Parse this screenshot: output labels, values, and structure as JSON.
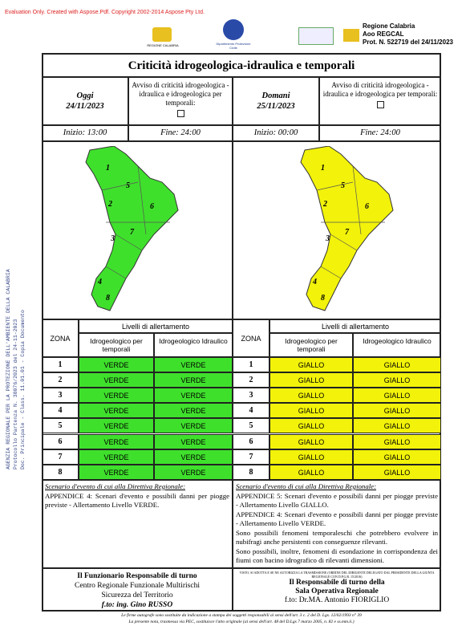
{
  "watermark": "Evaluation Only. Created with Aspose.Pdf. Copyright 2002-2014 Aspose Pty Ltd.",
  "header": {
    "logo_left": "REGIONE CALABRIA",
    "logo_center": "Dipartimento Protezione Civile",
    "right": [
      "Regione Calabria",
      "Aoo REGCAL",
      "Prot. N. 522719 del 24/11/2023"
    ]
  },
  "side_stamp": [
    "AGENZIA REGIONALE PER LA PROTEZIONE DELL'AMBIENTE DELLA CALABRIA",
    "Protocollo Partenza N. 38076/2023 del 24-11-2023",
    "Doc. Principale - Class. 11.01.01 - Copia Documento"
  ],
  "title": "Criticità idrogeologica-idraulica e temporali",
  "panels": [
    {
      "day": "Oggi",
      "date": "24/11/2023",
      "avviso": "Avviso di criticità idrogeologica - idraulica e idrogeologica per temporali:",
      "start": "Inizio: 13:00",
      "end": "Fine: 24:00",
      "color": "#3fe02c",
      "map_labels": [
        "1",
        "5",
        "2",
        "6",
        "3",
        "7",
        "4",
        "8"
      ],
      "zona_header": "ZONA",
      "levels_header": "Livelli di allertamento",
      "col1": "Idrogeologico per temporali",
      "col2": "Idrogeologico Idraulico",
      "rows": [
        [
          "1",
          "VERDE",
          "VERDE"
        ],
        [
          "2",
          "VERDE",
          "VERDE"
        ],
        [
          "3",
          "VERDE",
          "VERDE"
        ],
        [
          "4",
          "VERDE",
          "VERDE"
        ],
        [
          "5",
          "VERDE",
          "VERDE"
        ],
        [
          "6",
          "VERDE",
          "VERDE"
        ],
        [
          "7",
          "VERDE",
          "VERDE"
        ],
        [
          "8",
          "VERDE",
          "VERDE"
        ]
      ],
      "scenario_title": "Scenario d'evento di cui alla Direttiva Regionale:",
      "scenario": [
        "APPENDICE 4: Scenari d'evento e possibili danni per piogge previste - Allertamento Livello VERDE."
      ]
    },
    {
      "day": "Domani",
      "date": "25/11/2023",
      "avviso": "Avviso di criticità idrogeologica - idraulica e idrogeologica per temporali:",
      "start": "Inizio: 00:00",
      "end": "Fine: 24:00",
      "color": "#f2f20a",
      "map_labels": [
        "1",
        "5",
        "2",
        "6",
        "3",
        "7",
        "4",
        "8"
      ],
      "zona_header": "ZONA",
      "levels_header": "Livelli di allertamento",
      "col1": "Idrogeologico per temporali",
      "col2": "Idrogeologico Idraulico",
      "rows": [
        [
          "1",
          "GIALLO",
          "GIALLO"
        ],
        [
          "2",
          "GIALLO",
          "GIALLO"
        ],
        [
          "3",
          "GIALLO",
          "GIALLO"
        ],
        [
          "4",
          "GIALLO",
          "GIALLO"
        ],
        [
          "5",
          "GIALLO",
          "GIALLO"
        ],
        [
          "6",
          "GIALLO",
          "GIALLO"
        ],
        [
          "7",
          "GIALLO",
          "GIALLO"
        ],
        [
          "8",
          "GIALLO",
          "GIALLO"
        ]
      ],
      "scenario_title": "Scenario d'evento di cui alla Direttiva Regionale:",
      "scenario": [
        "APPENDICE 5: Scenari d'evento e possibili danni per piogge previste - Allertamento Livello GIALLO.",
        "APPENDICE 4: Scenari d'evento e possibili danni per piogge previste - Allertamento Livello VERDE.",
        "Sono possibili fenomeni temporaleschi che potrebbero evolvere in nubifragi anche persistenti con conseguenze rilevanti.",
        "Sono possibili, inoltre, fenomeni di esondazione in corrispondenza dei fiumi con bacino idrografico di rilevanti dimensioni."
      ]
    }
  ],
  "footer": {
    "left": [
      "Il Funzionario Responsabile di turno",
      "Centro Regionale Funzionale Multirischi",
      "Sicurezza del Territorio",
      "f.to: ing. Gino RUSSO"
    ],
    "right_note": "VISTO, SI ADOTTA E SE NE AUTORIZZA LA TRASMISSIONE (ORDINE DEL DIRIGENTE DELEGATO DAL PRESIDENTE DELLA GIUNTA REGIONALE CON D.P.G.R. 15/2016)",
    "right": [
      "Il Responsabile di turno della",
      "Sala Operativa Regionale",
      "f.to: Dr.MA. Antonio FIORIGLIO"
    ],
    "notes": [
      "Le firme autografe sono sostituite da indicazione a stampa dei soggetti responsabili ai sensi dell'art. 3 c. 2 del D. Lgs. 12/02/1993 n° 39",
      "La presente nota, trasmessa via PEC, sostituisce l'atto originale (ai sensi dell'art. 48 del D.Lgs 7 marzo 2005, n. 82 e ss.mm.ii.)"
    ]
  }
}
